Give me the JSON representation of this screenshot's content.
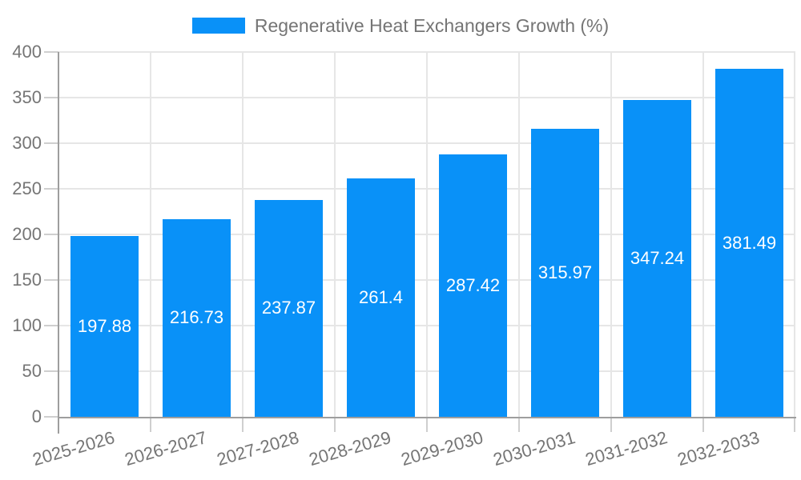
{
  "chart_data": {
    "type": "bar",
    "title": "Regenerative Heat Exchangers Growth (%)",
    "categories": [
      "2025-2026",
      "2026-2027",
      "2027-2028",
      "2028-2029",
      "2029-2030",
      "2030-2031",
      "2031-2032",
      "2032-2033"
    ],
    "values": [
      197.88,
      216.73,
      237.87,
      261.4,
      287.42,
      315.97,
      347.24,
      381.49
    ],
    "value_labels": [
      "197.88",
      "216.73",
      "237.87",
      "261.4",
      "287.42",
      "315.97",
      "347.24",
      "381.49"
    ],
    "xlabel": "",
    "ylabel": "",
    "ylim": [
      0,
      400
    ],
    "yticks": [
      0,
      50,
      100,
      150,
      200,
      250,
      300,
      350,
      400
    ],
    "grid": true,
    "legend_position": "top-center",
    "colors": {
      "bar": "#0991f8",
      "value_label_text": "#ffffff",
      "axis_text": "#757575",
      "legend_text": "#757575",
      "gridline": "#e6e6e6",
      "axis_line": "#9e9e9e",
      "tick_mark": "#cfcfcf"
    }
  }
}
